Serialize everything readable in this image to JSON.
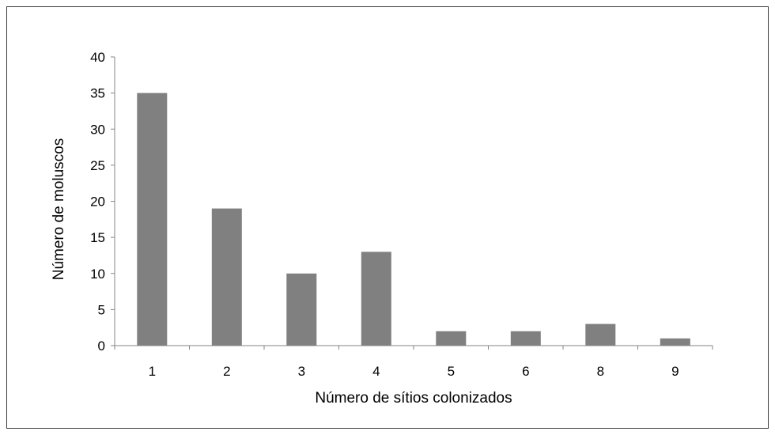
{
  "chart_data": {
    "type": "bar",
    "categories": [
      "1",
      "2",
      "3",
      "4",
      "5",
      "6",
      "8",
      "9"
    ],
    "values": [
      35,
      19,
      10,
      13,
      2,
      2,
      3,
      1
    ],
    "title": "",
    "xlabel": "Número de sítios colonizados",
    "ylabel": "Número de moluscos",
    "ylim": [
      0,
      40
    ],
    "yticks": [
      0,
      5,
      10,
      15,
      20,
      25,
      30,
      35,
      40
    ],
    "grid": false,
    "legend": "none",
    "bar_color": "#808080",
    "axis_color": "#868686"
  }
}
